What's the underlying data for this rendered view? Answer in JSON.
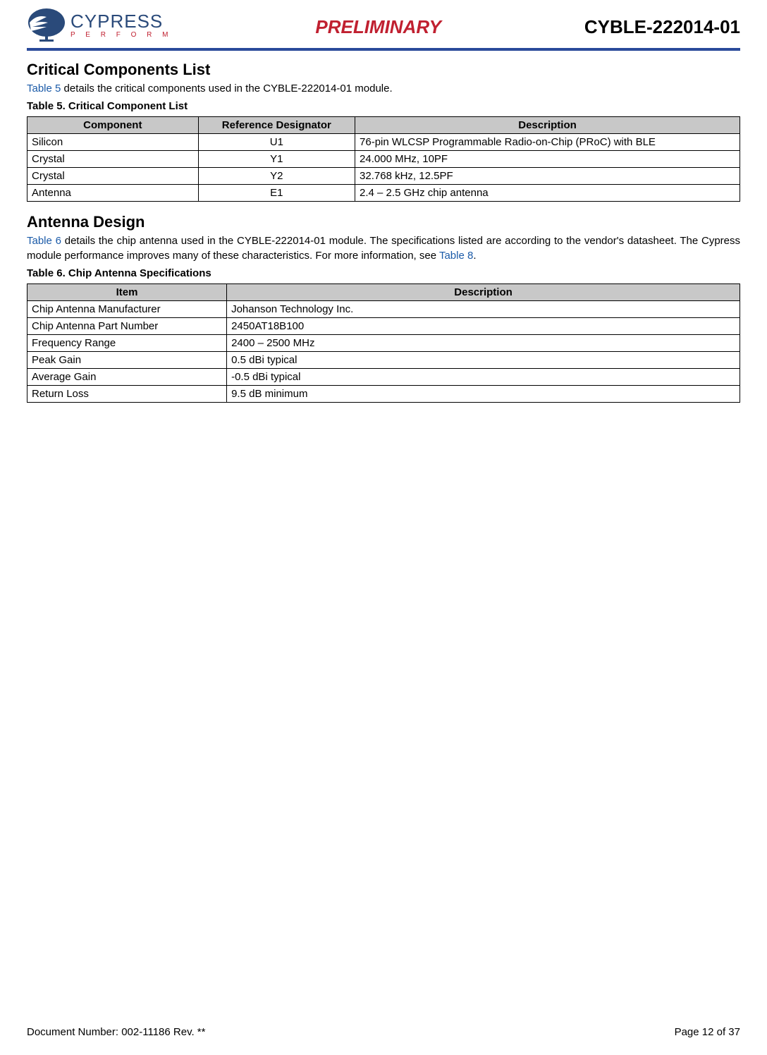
{
  "header": {
    "logo_brand": "CYPRESS",
    "logo_tagline": "P E R F O R M",
    "preliminary": "PRELIMINARY",
    "doc_id": "CYBLE-222014-01",
    "rule_color": "#2a4a9a",
    "brand_color": "#2a4a7a",
    "accent_color": "#c02030"
  },
  "section1": {
    "heading": "Critical Components List",
    "intro_prefix": "Table 5",
    "intro_rest": " details the critical components used in the CYBLE-222014-01 module.",
    "table_title": "Table 5.  Critical Component List",
    "table": {
      "columns": [
        "Component",
        "Reference Designator",
        "Description"
      ],
      "col_widths": [
        "24%",
        "22%",
        "54%"
      ],
      "col_align": [
        "left",
        "center",
        "left"
      ],
      "header_bg": "#c8c8c8",
      "border_color": "#000000",
      "rows": [
        [
          "Silicon",
          "U1",
          "76-pin WLCSP Programmable Radio-on-Chip (PRoC) with BLE"
        ],
        [
          "Crystal",
          "Y1",
          "24.000 MHz, 10PF"
        ],
        [
          "Crystal",
          "Y2",
          "32.768 kHz, 12.5PF"
        ],
        [
          "Antenna",
          "E1",
          "2.4 – 2.5 GHz chip antenna"
        ]
      ]
    }
  },
  "section2": {
    "heading": "Antenna Design",
    "intro_link1": "Table 6",
    "intro_mid": " details the chip antenna used in the CYBLE-222014-01 module. The specifications listed are according to the vendor's datasheet. The Cypress module performance improves many of these characteristics. For more information, see ",
    "intro_link2": "Table 8",
    "intro_end": ".",
    "table_title": "Table 6.  Chip Antenna Specifications",
    "table": {
      "columns": [
        "Item",
        "Description"
      ],
      "col_widths": [
        "28%",
        "72%"
      ],
      "col_align": [
        "left",
        "left"
      ],
      "header_bg": "#c8c8c8",
      "border_color": "#000000",
      "rows": [
        [
          "Chip Antenna Manufacturer",
          "Johanson Technology Inc."
        ],
        [
          "Chip Antenna Part Number",
          "2450AT18B100"
        ],
        [
          "Frequency Range",
          "2400 – 2500 MHz"
        ],
        [
          "Peak Gain",
          "0.5 dBi typical"
        ],
        [
          "Average Gain",
          "-0.5 dBi typical"
        ],
        [
          "Return Loss",
          "9.5 dB minimum"
        ]
      ]
    }
  },
  "footer": {
    "left": "Document Number: 002-11186 Rev. **",
    "right": "Page 12 of 37"
  },
  "link_color": "#1a5aa8"
}
